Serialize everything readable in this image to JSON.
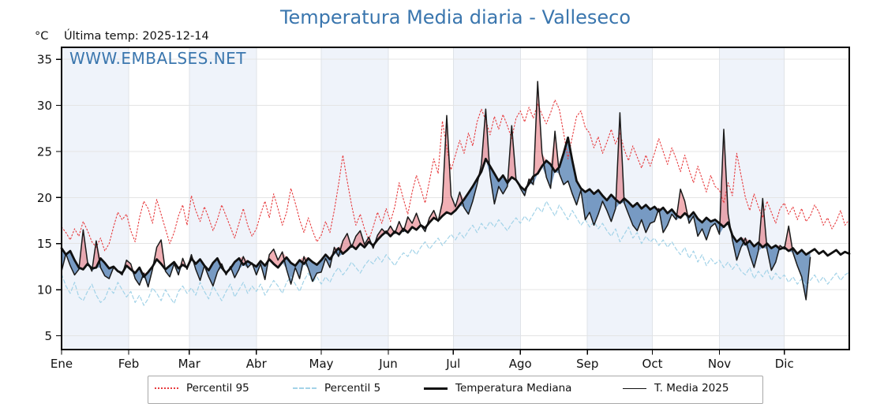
{
  "header": {
    "title": "Temperatura Media diaria - Valleseco",
    "unit_label": "°C",
    "last_temp_label": "Última temp: 2025-12-14"
  },
  "watermark": "WWW.EMBALSES.NET",
  "legend": {
    "items": [
      {
        "label": "Percentil 95",
        "style": "dotted-red"
      },
      {
        "label": "Percentil 5",
        "style": "dashed-lightblue"
      },
      {
        "label": "Temperatura Mediana",
        "style": "solid-thick-black"
      },
      {
        "label": "T. Media 2025",
        "style": "solid-thin-black"
      }
    ]
  },
  "colors": {
    "title": "#3a76ae",
    "watermark": "#3a76ae",
    "p95": "#e73b3e",
    "p5": "#a3d3e8",
    "median": "#101010",
    "t2025": "#1a1a1a",
    "fill_above": "rgba(224,80,90,0.45)",
    "fill_below": "rgba(62,112,168,0.68)",
    "band": "#eff3fa",
    "grid": "#e4e4e4",
    "axis": "#000000"
  },
  "chart_data": {
    "type": "line",
    "title": "Temperatura Media diaria - Valleseco",
    "xlabel": "",
    "ylabel": "°C",
    "x_unit": "day_of_year",
    "ylim": [
      3.5,
      36.3
    ],
    "y_ticks": [
      5,
      10,
      15,
      20,
      25,
      30,
      35
    ],
    "grid": true,
    "legend_position": "bottom",
    "months": [
      {
        "label": "Ene",
        "start_day": 1
      },
      {
        "label": "Feb",
        "start_day": 32
      },
      {
        "label": "Mar",
        "start_day": 60
      },
      {
        "label": "Abr",
        "start_day": 91
      },
      {
        "label": "May",
        "start_day": 121
      },
      {
        "label": "Jun",
        "start_day": 152
      },
      {
        "label": "Jul",
        "start_day": 182
      },
      {
        "label": "Ago",
        "start_day": 213
      },
      {
        "label": "Sep",
        "start_day": 244
      },
      {
        "label": "Oct",
        "start_day": 274
      },
      {
        "label": "Nov",
        "start_day": 305
      },
      {
        "label": "Dic",
        "start_day": 335
      }
    ],
    "days": [
      1,
      3,
      5,
      7,
      9,
      11,
      13,
      15,
      17,
      19,
      21,
      23,
      25,
      27,
      29,
      31,
      33,
      35,
      37,
      39,
      41,
      43,
      45,
      47,
      49,
      51,
      53,
      55,
      57,
      59,
      61,
      63,
      65,
      67,
      69,
      71,
      73,
      75,
      77,
      79,
      81,
      83,
      85,
      87,
      89,
      91,
      93,
      95,
      97,
      99,
      101,
      103,
      105,
      107,
      109,
      111,
      113,
      115,
      117,
      119,
      121,
      123,
      125,
      127,
      129,
      131,
      133,
      135,
      137,
      139,
      141,
      143,
      145,
      147,
      149,
      151,
      153,
      155,
      157,
      159,
      161,
      163,
      165,
      167,
      169,
      171,
      173,
      175,
      177,
      179,
      181,
      183,
      185,
      187,
      189,
      191,
      193,
      195,
      197,
      199,
      201,
      203,
      205,
      207,
      209,
      211,
      213,
      215,
      217,
      219,
      221,
      223,
      225,
      227,
      229,
      231,
      233,
      235,
      237,
      239,
      241,
      243,
      245,
      247,
      249,
      251,
      253,
      255,
      257,
      259,
      261,
      263,
      265,
      267,
      269,
      271,
      273,
      275,
      277,
      279,
      281,
      283,
      285,
      287,
      289,
      291,
      293,
      295,
      297,
      299,
      301,
      303,
      305,
      307,
      309,
      311,
      313,
      315,
      317,
      319,
      321,
      323,
      325,
      327,
      329,
      331,
      333,
      335,
      337,
      339,
      341,
      343,
      345,
      347,
      349,
      351,
      353,
      355,
      357,
      359,
      361,
      363,
      365
    ],
    "series": [
      {
        "name": "Percentil 95",
        "style": "dotted",
        "values": [
          16.8,
          16.2,
          15.4,
          16.6,
          15.8,
          17.4,
          16.4,
          15.2,
          14.6,
          15.6,
          14.2,
          15.0,
          16.8,
          18.4,
          17.6,
          18.2,
          16.4,
          15.2,
          17.8,
          19.6,
          18.8,
          17.2,
          19.8,
          18.2,
          16.6,
          15.0,
          16.2,
          18.0,
          19.2,
          17.0,
          20.2,
          18.6,
          17.4,
          19.0,
          17.8,
          16.4,
          17.6,
          19.2,
          18.0,
          16.8,
          15.6,
          17.2,
          18.8,
          17.0,
          15.8,
          16.6,
          18.2,
          19.6,
          17.8,
          20.4,
          18.8,
          17.0,
          18.4,
          21.0,
          19.4,
          17.6,
          16.2,
          17.8,
          16.4,
          15.2,
          15.9,
          17.4,
          16.2,
          18.6,
          21.4,
          24.6,
          21.8,
          19.2,
          17.0,
          18.2,
          16.6,
          15.4,
          16.8,
          18.4,
          17.2,
          18.8,
          17.4,
          19.0,
          21.6,
          19.8,
          18.2,
          20.6,
          22.4,
          21.0,
          19.4,
          21.8,
          24.2,
          22.6,
          28.3,
          25.4,
          23.0,
          24.6,
          26.2,
          24.8,
          27.0,
          25.6,
          28.2,
          29.6,
          28.4,
          26.8,
          28.8,
          27.4,
          29.0,
          27.8,
          26.4,
          28.6,
          29.4,
          28.2,
          29.8,
          28.6,
          30.2,
          29.0,
          28.0,
          29.2,
          30.6,
          29.6,
          27.0,
          24.2,
          26.6,
          28.8,
          29.4,
          27.6,
          27.0,
          25.4,
          26.6,
          24.8,
          26.0,
          27.4,
          25.8,
          27.0,
          25.2,
          24.0,
          25.6,
          24.4,
          23.2,
          24.6,
          23.4,
          24.8,
          26.4,
          25.0,
          23.6,
          25.4,
          24.2,
          22.8,
          24.6,
          23.0,
          21.6,
          23.4,
          22.0,
          20.6,
          22.4,
          21.2,
          20.8,
          19.4,
          21.6,
          20.2,
          24.8,
          22.4,
          20.0,
          18.6,
          20.4,
          19.0,
          17.8,
          19.6,
          18.4,
          17.2,
          18.8,
          19.4,
          18.2,
          19.0,
          17.6,
          18.8,
          17.4,
          18.0,
          19.2,
          18.4,
          17.0,
          17.8,
          16.6,
          17.4,
          18.6,
          17.0,
          17.6
        ]
      },
      {
        "name": "Percentil 5",
        "style": "dashed",
        "values": [
          11.7,
          10.4,
          9.6,
          10.8,
          9.2,
          8.8,
          9.8,
          10.6,
          9.4,
          8.6,
          9.0,
          10.2,
          9.6,
          10.8,
          10.0,
          9.2,
          9.8,
          8.6,
          9.4,
          8.3,
          9.0,
          10.2,
          9.6,
          8.8,
          10.0,
          9.2,
          8.5,
          9.8,
          10.4,
          9.6,
          10.2,
          9.4,
          10.8,
          9.8,
          9.0,
          10.4,
          9.6,
          8.8,
          9.8,
          10.6,
          9.2,
          10.0,
          10.8,
          9.6,
          10.4,
          9.8,
          10.6,
          9.4,
          10.2,
          11.0,
          10.4,
          9.6,
          10.8,
          11.4,
          10.6,
          9.8,
          11.0,
          11.8,
          10.8,
          11.4,
          10.6,
          11.4,
          10.8,
          11.8,
          12.4,
          11.6,
          12.2,
          13.0,
          12.4,
          11.8,
          12.6,
          13.2,
          12.8,
          13.6,
          13.0,
          13.8,
          13.2,
          12.6,
          13.4,
          14.0,
          13.6,
          14.4,
          13.8,
          14.6,
          15.2,
          14.4,
          15.0,
          15.6,
          14.8,
          15.4,
          16.0,
          15.4,
          16.2,
          15.6,
          16.4,
          17.0,
          16.2,
          17.2,
          16.6,
          17.4,
          16.8,
          17.6,
          17.0,
          16.4,
          17.2,
          17.8,
          17.2,
          18.0,
          17.4,
          18.2,
          19.0,
          18.4,
          19.6,
          18.8,
          18.0,
          19.2,
          18.4,
          17.6,
          18.6,
          17.8,
          17.0,
          17.6,
          16.8,
          17.4,
          16.6,
          17.2,
          16.4,
          15.8,
          16.6,
          15.2,
          16.0,
          16.8,
          15.6,
          16.2,
          15.0,
          15.8,
          15.2,
          15.6,
          14.8,
          15.4,
          14.6,
          15.2,
          14.4,
          13.8,
          14.6,
          13.4,
          14.2,
          13.0,
          13.8,
          12.6,
          13.4,
          12.8,
          13.2,
          12.4,
          13.0,
          12.2,
          12.8,
          12.0,
          11.6,
          12.4,
          11.2,
          12.0,
          11.4,
          12.2,
          11.0,
          11.8,
          11.2,
          11.6,
          10.8,
          11.4,
          10.6,
          11.2,
          10.4,
          11.0,
          11.6,
          10.8,
          11.4,
          10.6,
          11.2,
          11.8,
          11.0,
          11.6,
          11.9
        ]
      },
      {
        "name": "Temperatura Mediana",
        "style": "solid-thick",
        "values": [
          14.5,
          13.8,
          14.2,
          13.2,
          12.4,
          12.2,
          12.8,
          12.3,
          12.4,
          13.4,
          12.9,
          12.3,
          12.5,
          12.0,
          11.8,
          12.6,
          12.2,
          11.8,
          12.4,
          11.4,
          11.9,
          12.5,
          13.3,
          12.8,
          12.2,
          12.6,
          13.0,
          12.3,
          12.7,
          12.4,
          13.4,
          12.8,
          13.3,
          12.6,
          12.1,
          12.9,
          13.4,
          12.4,
          11.8,
          12.3,
          13.0,
          13.4,
          12.7,
          13.1,
          12.8,
          12.5,
          13.1,
          12.6,
          13.3,
          12.8,
          12.4,
          13.0,
          13.5,
          12.9,
          12.6,
          13.2,
          12.8,
          13.4,
          13.0,
          12.7,
          13.2,
          13.8,
          13.3,
          14.0,
          14.5,
          13.9,
          14.3,
          14.8,
          14.4,
          15.0,
          14.6,
          15.2,
          14.8,
          15.4,
          15.9,
          16.3,
          15.8,
          16.3,
          16.0,
          16.6,
          16.2,
          16.8,
          16.5,
          17.0,
          16.7,
          17.3,
          17.8,
          17.5,
          18.0,
          18.4,
          18.2,
          18.6,
          19.2,
          19.8,
          20.5,
          21.2,
          22.0,
          22.8,
          24.2,
          23.4,
          22.6,
          21.8,
          22.4,
          21.6,
          22.2,
          21.9,
          21.2,
          20.8,
          21.5,
          22.3,
          22.6,
          23.4,
          24.0,
          23.6,
          22.8,
          23.3,
          24.8,
          26.5,
          24.0,
          21.8,
          21.0,
          20.6,
          20.9,
          20.4,
          20.8,
          20.2,
          19.7,
          20.3,
          19.8,
          19.4,
          19.9,
          19.5,
          19.0,
          19.4,
          18.8,
          19.2,
          18.7,
          19.0,
          18.5,
          18.9,
          18.3,
          18.7,
          18.1,
          17.8,
          18.3,
          17.9,
          18.4,
          17.7,
          17.3,
          17.8,
          17.4,
          17.6,
          17.2,
          16.8,
          17.3,
          15.9,
          15.2,
          15.6,
          14.9,
          15.3,
          14.7,
          15.1,
          14.6,
          15.0,
          14.5,
          14.8,
          14.4,
          14.6,
          14.2,
          14.5,
          13.9,
          14.3,
          13.8,
          14.1,
          14.4,
          13.9,
          14.2,
          13.7,
          14.0,
          14.3,
          13.8,
          14.1,
          13.9
        ]
      },
      {
        "name": "T. Media 2025",
        "style": "solid-thin",
        "values": [
          12.0,
          13.9,
          12.6,
          11.6,
          12.2,
          16.5,
          13.0,
          12.0,
          15.3,
          12.4,
          11.5,
          11.2,
          12.4,
          12.0,
          11.6,
          13.2,
          12.8,
          11.2,
          10.5,
          11.8,
          10.3,
          12.2,
          14.6,
          15.4,
          12.0,
          11.4,
          12.8,
          11.6,
          13.4,
          12.2,
          13.8,
          12.2,
          11.0,
          12.6,
          11.4,
          10.4,
          11.9,
          12.8,
          11.6,
          12.5,
          11.3,
          12.2,
          13.6,
          12.4,
          12.9,
          11.6,
          12.8,
          11.1,
          13.8,
          14.4,
          13.2,
          14.1,
          12.2,
          10.6,
          12.4,
          11.2,
          13.6,
          12.3,
          10.9,
          11.8,
          11.9,
          13.4,
          12.4,
          14.6,
          13.6,
          15.3,
          16.1,
          14.6,
          15.8,
          16.4,
          14.9,
          15.7,
          14.5,
          15.9,
          16.6,
          16.1,
          16.9,
          16.1,
          17.4,
          16.3,
          17.9,
          17.2,
          18.3,
          17.0,
          16.3,
          17.8,
          18.6,
          17.4,
          19.5,
          28.9,
          20.2,
          19.0,
          20.6,
          18.9,
          18.2,
          19.6,
          21.4,
          23.6,
          29.6,
          22.4,
          19.3,
          21.2,
          20.4,
          21.2,
          27.8,
          22.0,
          21.0,
          20.2,
          22.0,
          21.4,
          32.6,
          24.8,
          22.2,
          21.0,
          27.2,
          22.6,
          21.4,
          21.8,
          20.4,
          19.2,
          20.8,
          17.6,
          18.4,
          17.0,
          18.2,
          19.6,
          18.6,
          17.4,
          18.8,
          29.2,
          19.4,
          18.2,
          17.0,
          16.4,
          17.6,
          16.2,
          17.2,
          17.4,
          18.8,
          16.2,
          17.0,
          18.2,
          17.6,
          20.9,
          19.6,
          17.2,
          18.0,
          15.8,
          16.6,
          15.4,
          16.8,
          17.2,
          16.0,
          27.4,
          18.2,
          15.4,
          13.2,
          14.6,
          15.6,
          13.8,
          12.4,
          14.2,
          19.9,
          14.4,
          12.1,
          13.0,
          14.8,
          14.4,
          16.9,
          14.0,
          12.6,
          11.4,
          8.9,
          13.5,
          null,
          null,
          null,
          null,
          null,
          null,
          null,
          null,
          null
        ]
      }
    ],
    "fills": {
      "between": [
        "T. Media 2025",
        "Temperatura Mediana"
      ],
      "above_color": "rgba(224,80,90,0.45)",
      "below_color": "rgba(62,112,168,0.68)"
    },
    "bands": {
      "tinted_months": [
        "Ene",
        "Mar",
        "May",
        "Jul",
        "Sep",
        "Nov"
      ]
    }
  }
}
